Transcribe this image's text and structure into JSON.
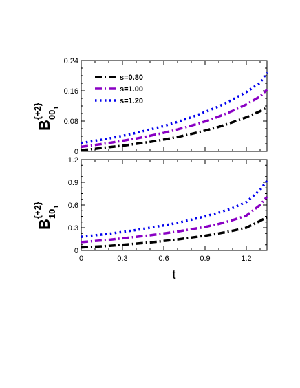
{
  "chart_data": [
    {
      "type": "line",
      "ylabel": {
        "main": "B",
        "superscript": "{+2}",
        "subscript": "00",
        "subsubscript": "1"
      },
      "xlabel": "",
      "xlim": [
        0,
        1.35
      ],
      "ylim": [
        0,
        0.24
      ],
      "yticks": [
        "0",
        "0.08",
        "0.16",
        "0.24"
      ],
      "ytick_values": [
        0,
        0.08,
        0.16,
        0.24
      ],
      "xticks": [],
      "x": [
        0,
        0.1,
        0.2,
        0.3,
        0.4,
        0.5,
        0.6,
        0.7,
        0.8,
        0.9,
        1.0,
        1.1,
        1.2,
        1.3,
        1.35
      ],
      "series": [
        {
          "name": "s=0.80",
          "color": "#000000",
          "style": "dash-dot",
          "values": [
            0.003,
            0.007,
            0.011,
            0.015,
            0.02,
            0.025,
            0.031,
            0.038,
            0.046,
            0.055,
            0.065,
            0.077,
            0.09,
            0.106,
            0.116
          ]
        },
        {
          "name": "s=1.00",
          "color": "#8a00c4",
          "style": "dash-dot",
          "values": [
            0.012,
            0.017,
            0.022,
            0.028,
            0.034,
            0.041,
            0.049,
            0.058,
            0.068,
            0.079,
            0.092,
            0.107,
            0.124,
            0.145,
            0.163
          ]
        },
        {
          "name": "s=1.20",
          "color": "#0000ee",
          "style": "dot",
          "values": [
            0.022,
            0.028,
            0.034,
            0.041,
            0.049,
            0.058,
            0.067,
            0.078,
            0.09,
            0.104,
            0.119,
            0.137,
            0.157,
            0.181,
            0.209
          ]
        }
      ],
      "legend": "top-left",
      "grid": false
    },
    {
      "type": "line",
      "ylabel": {
        "main": "B",
        "superscript": "{+2}",
        "subscript": "10",
        "subsubscript": "1"
      },
      "xlabel": "t",
      "xlim": [
        0,
        1.35
      ],
      "ylim": [
        0,
        1.2
      ],
      "yticks": [
        "0",
        "0.3",
        "0.6",
        "0.9",
        "1.2"
      ],
      "ytick_values": [
        0,
        0.3,
        0.6,
        0.9,
        1.2
      ],
      "xticks": [
        "0",
        "0.3",
        "0.6",
        "0.9",
        "1.2"
      ],
      "xtick_values": [
        0,
        0.3,
        0.6,
        0.9,
        1.2
      ],
      "x": [
        0,
        0.1,
        0.2,
        0.3,
        0.4,
        0.5,
        0.6,
        0.7,
        0.8,
        0.9,
        1.0,
        1.1,
        1.2,
        1.3,
        1.35
      ],
      "series": [
        {
          "name": "s=0.80",
          "color": "#000000",
          "style": "dash-dot",
          "values": [
            0.04,
            0.05,
            0.06,
            0.075,
            0.09,
            0.105,
            0.125,
            0.145,
            0.17,
            0.195,
            0.225,
            0.26,
            0.3,
            0.39,
            0.44
          ]
        },
        {
          "name": "s=1.00",
          "color": "#8a00c4",
          "style": "dash-dot",
          "values": [
            0.11,
            0.125,
            0.14,
            0.16,
            0.18,
            0.2,
            0.225,
            0.25,
            0.28,
            0.31,
            0.35,
            0.4,
            0.46,
            0.6,
            0.71
          ]
        },
        {
          "name": "s=1.20",
          "color": "#0000ee",
          "style": "dot",
          "values": [
            0.18,
            0.2,
            0.22,
            0.245,
            0.27,
            0.3,
            0.33,
            0.365,
            0.405,
            0.45,
            0.5,
            0.56,
            0.64,
            0.8,
            0.92
          ]
        }
      ],
      "legend": "none",
      "grid": false
    }
  ]
}
